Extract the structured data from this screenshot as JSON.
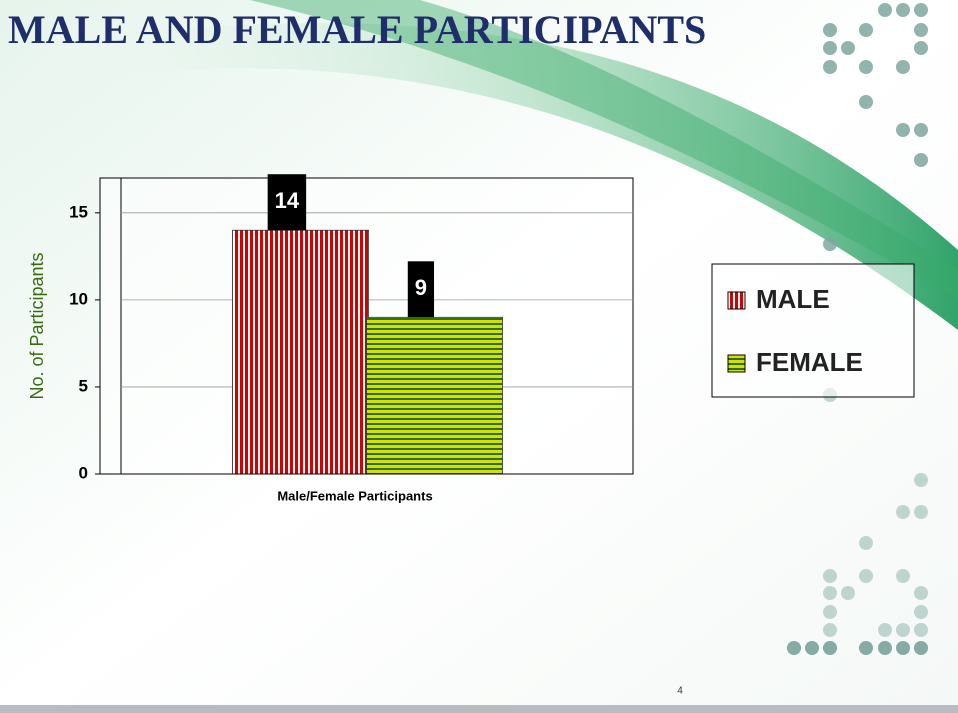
{
  "chart_data": {
    "type": "bar",
    "title": "MALE AND FEMALE PARTICIPANTS",
    "categories": [
      "Male/Female Participants"
    ],
    "series": [
      {
        "name": "MALE",
        "color": "#d40000",
        "stripe_color": "#ffffff",
        "pattern": "vertical",
        "values": [
          14
        ]
      },
      {
        "name": "FEMALE",
        "color": "#d4e000",
        "stripe_color": "#2f6f10",
        "pattern": "horizontal",
        "values": [
          9
        ]
      }
    ],
    "ylim": [
      0,
      17
    ],
    "yticks": [
      0,
      5,
      10,
      15
    ],
    "grid": true,
    "y_label": "No. of Participants",
    "x_label": "Male/Female Participants",
    "legend": "right"
  },
  "page_number": 4
}
